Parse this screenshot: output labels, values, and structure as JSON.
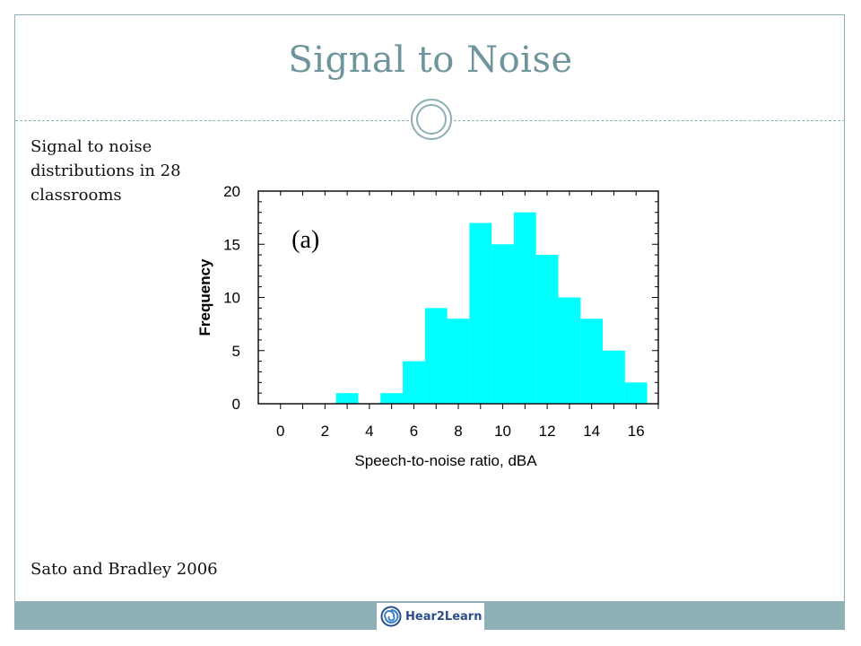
{
  "slide": {
    "title": "Signal to Noise",
    "caption": "Signal to noise distributions in 28 classrooms",
    "citation": "Sato and Bradley 2006",
    "logo_text": "Hear2Learn"
  },
  "colors": {
    "bar": "#00ffff",
    "accent": "#8fb0b4",
    "title": "#6e959b"
  },
  "chart_data": {
    "type": "bar",
    "annotation": "(a)",
    "xlabel": "Speech-to-noise ratio, dBA",
    "ylabel": "Frequency",
    "xlim": [
      -1,
      17
    ],
    "ylim": [
      0,
      20
    ],
    "bin_width": 1,
    "x_ticks": [
      0,
      2,
      4,
      6,
      8,
      10,
      12,
      14,
      16
    ],
    "y_ticks": [
      0,
      5,
      10,
      15,
      20
    ],
    "bins": [
      {
        "start": 2.5,
        "end": 3.5,
        "value": 1
      },
      {
        "start": 4.5,
        "end": 5.5,
        "value": 1
      },
      {
        "start": 5.5,
        "end": 6.5,
        "value": 4
      },
      {
        "start": 6.5,
        "end": 7.5,
        "value": 9
      },
      {
        "start": 7.5,
        "end": 8.5,
        "value": 8
      },
      {
        "start": 8.5,
        "end": 9.5,
        "value": 17
      },
      {
        "start": 9.5,
        "end": 10.5,
        "value": 15
      },
      {
        "start": 10.5,
        "end": 11.5,
        "value": 18
      },
      {
        "start": 11.5,
        "end": 12.5,
        "value": 14
      },
      {
        "start": 12.5,
        "end": 13.5,
        "value": 10
      },
      {
        "start": 13.5,
        "end": 14.5,
        "value": 8
      },
      {
        "start": 14.5,
        "end": 15.5,
        "value": 5
      },
      {
        "start": 15.5,
        "end": 16.5,
        "value": 2
      }
    ],
    "grid": false,
    "legend": "none"
  }
}
